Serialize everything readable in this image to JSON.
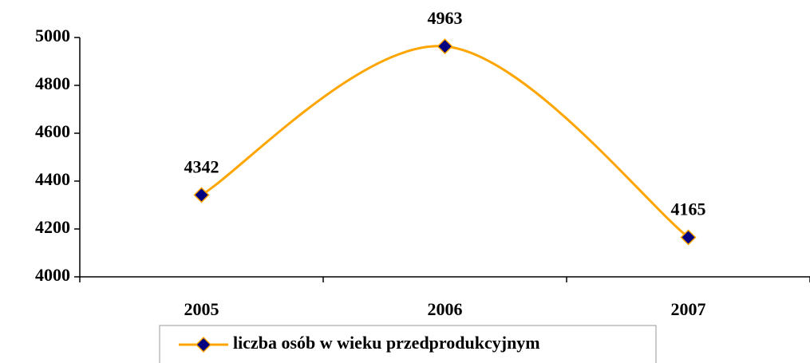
{
  "chart_data": {
    "type": "line",
    "categories": [
      "2005",
      "2006",
      "2007"
    ],
    "series": [
      {
        "name": "liczba osób w wieku przedprodukcyjnym",
        "color": "#ffa500",
        "marker_color": "#000080",
        "values": [
          4342,
          4963,
          4165
        ]
      }
    ],
    "ylim": [
      4000,
      5000
    ],
    "yticks": [
      4000,
      4200,
      4400,
      4600,
      4800,
      5000
    ],
    "smooth": true,
    "legend": "bottom"
  }
}
